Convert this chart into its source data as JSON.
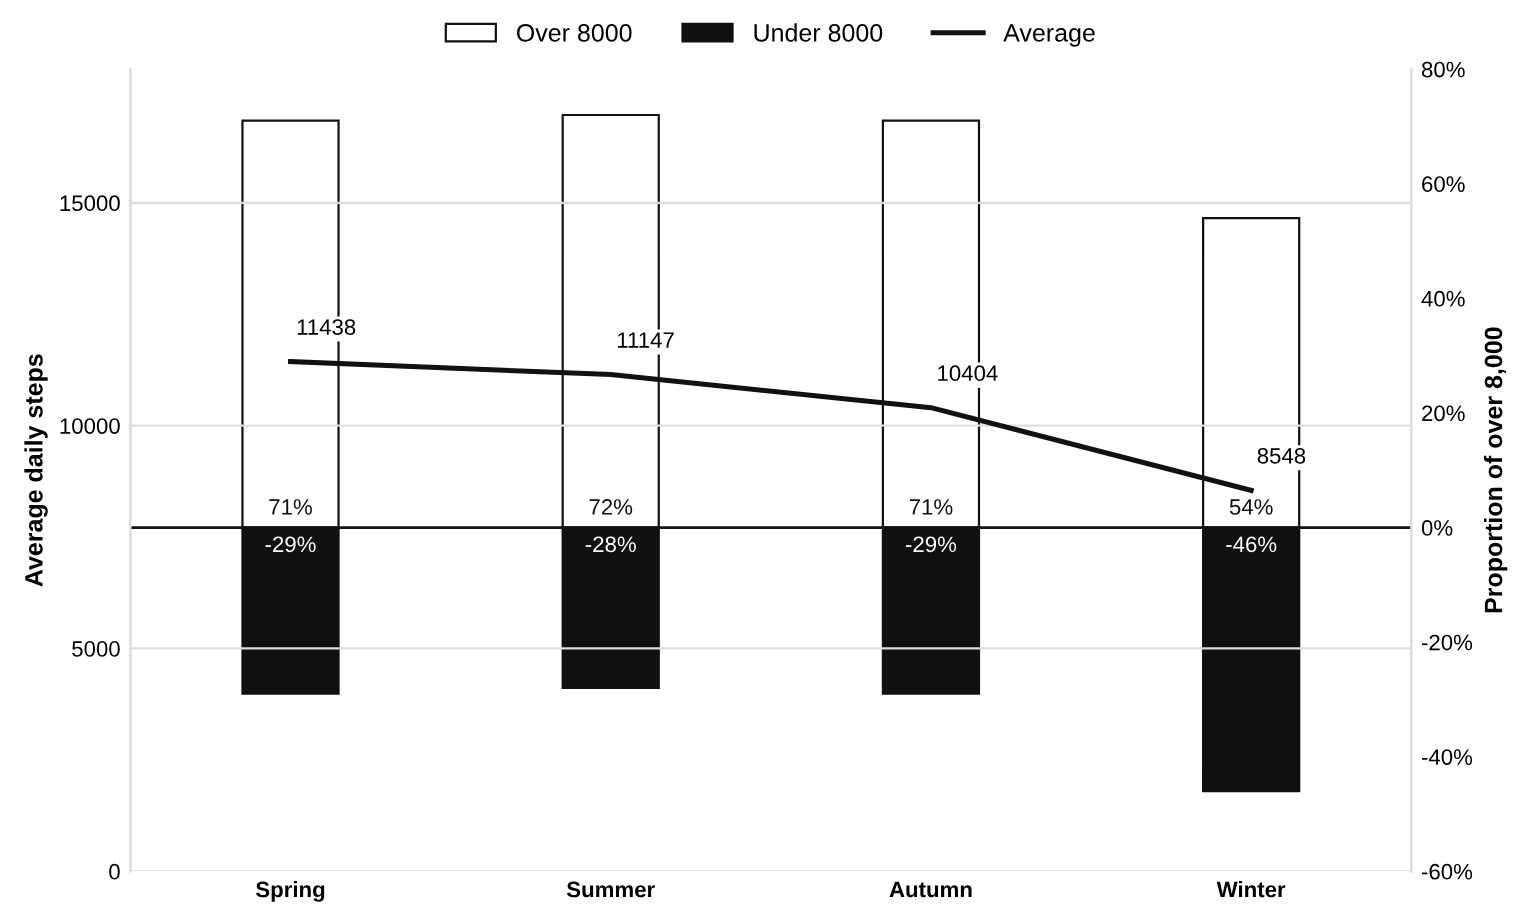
{
  "chart_data": {
    "type": "bar",
    "categories": [
      "Spring",
      "Summer",
      "Autumn",
      "Winter"
    ],
    "ylabel": "Average daily steps",
    "y2label": "Proportion of over 8,000",
    "ylim": [
      0,
      18000
    ],
    "yticks": [
      0,
      5000,
      10000,
      15000
    ],
    "y2lim": [
      -60,
      80
    ],
    "y2ticks": [
      {
        "value": -60,
        "label": "-60%"
      },
      {
        "value": -40,
        "label": "-40%"
      },
      {
        "value": -20,
        "label": "-20%"
      },
      {
        "value": 0,
        "label": "0%"
      },
      {
        "value": 20,
        "label": "20%"
      },
      {
        "value": 40,
        "label": "40%"
      },
      {
        "value": 60,
        "label": "60%"
      },
      {
        "value": 80,
        "label": "80%"
      }
    ],
    "series": [
      {
        "name": "Over 8000",
        "axis": "y2",
        "color": "#ffffff",
        "values": [
          71,
          72,
          71,
          54
        ],
        "value_labels": [
          "71%",
          "72%",
          "71%",
          "54%"
        ]
      },
      {
        "name": "Under 8000",
        "axis": "y2",
        "color": "#111111",
        "values": [
          -29,
          -28,
          -29,
          -46
        ],
        "value_labels": [
          "-29%",
          "-28%",
          "-29%",
          "-46%"
        ]
      },
      {
        "name": "Average",
        "type": "line",
        "axis": "y",
        "color": "#111111",
        "values": [
          11438,
          11147,
          10404,
          8548
        ],
        "value_labels": [
          "11438",
          "11147",
          "10404",
          "8548"
        ]
      }
    ],
    "ref_lines": [
      {
        "axis": "y2",
        "value": 0,
        "color": "#111111"
      }
    ],
    "stacked": true,
    "grid": "y",
    "legend": "top",
    "marker": "none",
    "line_style": "solid"
  }
}
